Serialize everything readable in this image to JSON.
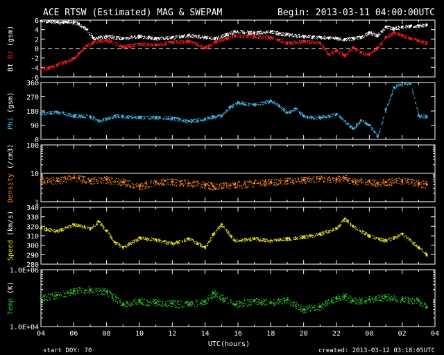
{
  "header": {
    "title": "ACE RTSW (Estimated) MAG & SWEPAM",
    "begin": "Begin: 2013-03-11 04:00:00UTC"
  },
  "footer": {
    "start_doy": "start DOY:  70",
    "created": "created: 2013-03-12 03:18:05UTC"
  },
  "colors": {
    "background": "#000000",
    "axis": "#ffffff",
    "bt": "#ffffff",
    "bz": "#ff2020",
    "phi": "#40b8e8",
    "density": "#ff8a20",
    "speed": "#e8e020",
    "temp": "#30c030"
  },
  "chart_data": {
    "type": "scatter",
    "x_axis": {
      "label": "UTC(hours)",
      "range_hours": [
        4,
        28
      ],
      "tick_labels": [
        "04",
        "06",
        "08",
        "10",
        "12",
        "14",
        "16",
        "18",
        "20",
        "22",
        "00",
        "02",
        "04"
      ]
    },
    "panels": [
      {
        "id": "mag",
        "ylabel_parts": [
          {
            "text": "Bt",
            "color": "#ffffff"
          },
          {
            "text": "Bz",
            "color": "#ff2020"
          },
          {
            "text": "(gsm)",
            "color": "#ffffff"
          }
        ],
        "ylim": [
          -6,
          6
        ],
        "scale": "linear",
        "yticks": [
          -6,
          -4,
          -2,
          0,
          2,
          4,
          6
        ],
        "ytick_labels": [
          "-6",
          "-4",
          "-2",
          "0",
          "2",
          "4",
          "6"
        ],
        "dashed_zero": true,
        "series": [
          {
            "name": "Bt",
            "color": "#ffffff",
            "x": [
              4,
              4.5,
              5,
              5.5,
              6,
              6.3,
              6.8,
              7.2,
              8,
              9,
              10,
              11,
              12,
              13,
              14,
              14.6,
              15.3,
              15.8,
              17,
              18,
              18.5,
              19,
              20,
              21,
              21.5,
              22,
              22.5,
              23,
              23.5,
              24,
              24.5,
              25,
              25.5,
              26,
              26.5,
              27,
              27.5
            ],
            "y": [
              5.8,
              5.8,
              5.6,
              5.6,
              5.6,
              5.2,
              4,
              2.2,
              2.6,
              2.2,
              2.6,
              2.2,
              2.4,
              2.8,
              2.4,
              2.2,
              3,
              3.6,
              3.4,
              3.6,
              3.2,
              3,
              2.6,
              2.4,
              2.3,
              2.2,
              2,
              2.2,
              2.4,
              3.4,
              2.8,
              4.6,
              4.2,
              4.6,
              4.8,
              4.8,
              5
            ]
          },
          {
            "name": "Bz",
            "color": "#ff2020",
            "x": [
              4,
              4.5,
              5,
              5.5,
              6,
              6.3,
              6.8,
              7.2,
              8,
              9,
              10,
              11,
              12,
              13,
              14,
              14.6,
              15.3,
              15.8,
              17,
              18,
              18.5,
              19,
              20,
              21,
              21.5,
              22,
              22.5,
              23,
              23.5,
              24,
              24.5,
              25,
              25.5,
              26,
              26.5,
              27,
              27.5
            ],
            "y": [
              -4.4,
              -4,
              -3.4,
              -2.8,
              -2,
              -1,
              0.6,
              1.4,
              1.8,
              0.4,
              1,
              0.8,
              1.4,
              1.6,
              0.2,
              1.4,
              2.2,
              2.8,
              2.6,
              2.4,
              1.8,
              1.2,
              1.6,
              1.2,
              -1.2,
              -0.4,
              -1.4,
              0.2,
              -0.8,
              -1.2,
              0.2,
              2.4,
              3.4,
              2.8,
              2.2,
              1.6,
              1.2
            ]
          }
        ]
      },
      {
        "id": "phi",
        "ylabel_parts": [
          {
            "text": "Phi",
            "color": "#40b8e8"
          },
          {
            "text": "(gsm)",
            "color": "#ffffff"
          }
        ],
        "ylim": [
          0,
          360
        ],
        "scale": "linear",
        "yticks": [
          0,
          90,
          180,
          270,
          360
        ],
        "ytick_labels": [
          "0",
          "90",
          "180",
          "270",
          "360"
        ],
        "series": [
          {
            "name": "Phi",
            "color": "#40b8e8",
            "x": [
              4,
              5,
              6,
              7,
              7.5,
              8,
              8.5,
              9,
              10,
              11,
              12,
              13,
              14,
              14.5,
              15,
              15.5,
              16,
              17,
              18,
              18.5,
              19,
              19.5,
              20,
              20.5,
              21,
              22,
              23,
              23.5,
              24,
              24.5,
              25,
              25.5,
              26,
              26.5,
              27,
              27.5
            ],
            "y": [
              165,
              175,
              150,
              145,
              120,
              130,
              150,
              145,
              140,
              140,
              135,
              115,
              130,
              145,
              150,
              205,
              235,
              220,
              245,
              215,
              170,
              195,
              150,
              140,
              140,
              160,
              70,
              120,
              90,
              20,
              190,
              330,
              360,
              355,
              150,
              145
            ]
          }
        ]
      },
      {
        "id": "density",
        "ylabel_parts": [
          {
            "text": "Density",
            "color": "#ff8a20"
          },
          {
            "text": "(/cm3)",
            "color": "#ffffff"
          }
        ],
        "ylim": [
          1,
          100
        ],
        "scale": "log",
        "yticks": [
          1,
          10,
          100
        ],
        "ytick_labels": [
          "1",
          "10",
          "100"
        ],
        "hline": 10,
        "series": [
          {
            "name": "Density",
            "color": "#ff8a20",
            "x": [
              4,
              5,
              6,
              7,
              8,
              9,
              10,
              11,
              12,
              13,
              14,
              14.5,
              15.8,
              17,
              18,
              19,
              20,
              21,
              22,
              22.5,
              23,
              24,
              24.5,
              25,
              26,
              27,
              27.5
            ],
            "y": [
              6,
              5.5,
              7,
              5.5,
              6,
              5,
              3.5,
              5,
              5,
              4.5,
              4,
              3.5,
              4,
              4.5,
              5,
              5.5,
              6,
              6.5,
              6,
              7,
              5,
              5.5,
              4.5,
              5,
              5.5,
              4.5,
              4
            ]
          }
        ]
      },
      {
        "id": "speed",
        "ylabel_parts": [
          {
            "text": "Speed",
            "color": "#e8e020"
          },
          {
            "text": "(km/s)",
            "color": "#ffffff"
          }
        ],
        "ylim": [
          280,
          340
        ],
        "scale": "linear",
        "yticks": [
          280,
          290,
          300,
          310,
          320,
          330,
          340
        ],
        "ytick_labels": [
          "280",
          "290",
          "300",
          "310",
          "320",
          "330",
          "340"
        ],
        "series": [
          {
            "name": "Speed",
            "color": "#e8e020",
            "x": [
              4,
              5,
              6,
              7,
              7.5,
              8,
              8.5,
              9,
              10,
              11,
              12,
              13,
              14,
              14.5,
              15,
              15.8,
              17,
              18,
              19,
              20,
              21,
              22,
              22.5,
              23,
              24,
              25,
              26,
              27,
              27.5
            ],
            "y": [
              318,
              315,
              322,
              318,
              325,
              315,
              303,
              298,
              308,
              306,
              302,
              307,
              298,
              312,
              322,
              305,
              307,
              305,
              307,
              309,
              312,
              318,
              328,
              320,
              310,
              305,
              312,
              298,
              290
            ]
          }
        ]
      },
      {
        "id": "temp",
        "ylabel_parts": [
          {
            "text": "Temp",
            "color": "#30c030"
          },
          {
            "text": "(K)",
            "color": "#ffffff"
          }
        ],
        "ylim": [
          10000,
          1000000
        ],
        "scale": "log",
        "yticks": [
          10000,
          1000000
        ],
        "ytick_labels": [
          "1.0E+04",
          "1.0E+06"
        ],
        "series": [
          {
            "name": "Temp",
            "color": "#30c030",
            "x": [
              4,
              5,
              6,
              7,
              8,
              9,
              10,
              11,
              12,
              13,
              14,
              14.5,
              15.8,
              17,
              18,
              19,
              20,
              21,
              22,
              22.5,
              23,
              24,
              25,
              26,
              27,
              27.5
            ],
            "y": [
              100000,
              130000,
              180000,
              200000,
              170000,
              60000,
              80000,
              70000,
              65000,
              60000,
              75000,
              150000,
              60000,
              80000,
              70000,
              90000,
              40000,
              50000,
              100000,
              120000,
              80000,
              90000,
              110000,
              90000,
              80000,
              50000
            ]
          }
        ]
      }
    ]
  }
}
